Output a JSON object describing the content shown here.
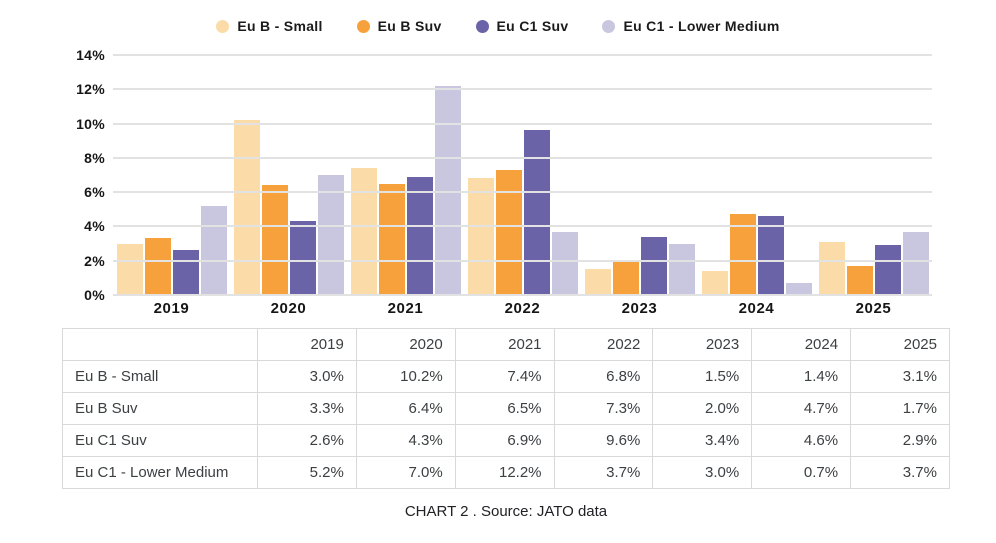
{
  "colors": {
    "grid": "#e2e2e2",
    "axis_text": "#161616",
    "table_border": "#d9d9d9",
    "table_text": "#3c4043"
  },
  "chart_data": {
    "type": "bar",
    "title": "",
    "xlabel": "",
    "ylabel": "",
    "ylim": [
      0,
      14
    ],
    "ytick_step": 2,
    "ytick_suffix": "%",
    "grid": true,
    "legend_position": "top-center",
    "categories": [
      "2019",
      "2020",
      "2021",
      "2022",
      "2023",
      "2024",
      "2025"
    ],
    "series": [
      {
        "name": "Eu B - Small",
        "color": "#fbdca8",
        "values": [
          3.0,
          10.2,
          7.4,
          6.8,
          1.5,
          1.4,
          3.1
        ]
      },
      {
        "name": "Eu B Suv",
        "color": "#f6a13b",
        "values": [
          3.3,
          6.4,
          6.5,
          7.3,
          2.0,
          4.7,
          1.7
        ]
      },
      {
        "name": "Eu C1 Suv",
        "color": "#6a63a8",
        "values": [
          2.6,
          4.3,
          6.9,
          9.6,
          3.4,
          4.6,
          2.9
        ]
      },
      {
        "name": "Eu C1 - Lower Medium",
        "color": "#c8c7df",
        "values": [
          5.2,
          7.0,
          12.2,
          3.7,
          3.0,
          0.7,
          3.7
        ]
      }
    ]
  },
  "table": {
    "corner_header": "",
    "column_headers": [
      "2019",
      "2020",
      "2021",
      "2022",
      "2023",
      "2024",
      "2025"
    ],
    "rows": [
      {
        "label": "Eu B - Small",
        "values": [
          "3.0%",
          "10.2%",
          "7.4%",
          "6.8%",
          "1.5%",
          "1.4%",
          "3.1%"
        ]
      },
      {
        "label": "Eu B Suv",
        "values": [
          "3.3%",
          "6.4%",
          "6.5%",
          "7.3%",
          "2.0%",
          "4.7%",
          "1.7%"
        ]
      },
      {
        "label": "Eu C1 Suv",
        "values": [
          "2.6%",
          "4.3%",
          "6.9%",
          "9.6%",
          "3.4%",
          "4.6%",
          "2.9%"
        ]
      },
      {
        "label": "Eu C1 - Lower Medium",
        "values": [
          "5.2%",
          "7.0%",
          "12.2%",
          "3.7%",
          "3.0%",
          "0.7%",
          "3.7%"
        ]
      }
    ]
  },
  "caption": "CHART 2 . Source: JATO data"
}
